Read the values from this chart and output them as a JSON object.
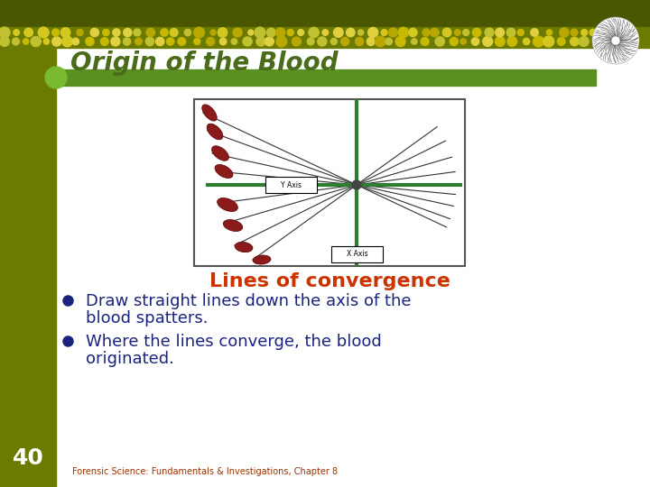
{
  "title": "Origin of the Blood",
  "title_color": "#4a6b1a",
  "title_fontsize": 20,
  "title_style": "italic",
  "background_color": "#ffffff",
  "convergence_title": "Lines of convergence",
  "convergence_color": "#cc3300",
  "convergence_fontsize": 16,
  "bullet1_line1": "Draw straight lines down the axis of the",
  "bullet1_line2": "blood spatters.",
  "bullet2_line1": "Where the lines converge, the blood",
  "bullet2_line2": "originated.",
  "bullet_fontsize": 13,
  "bullet_color": "#1a237e",
  "footer_text": "Forensic Science: Fundamentals & Investigations, Chapter 8",
  "footer_fontsize": 7,
  "footer_color": "#993300",
  "page_number": "40",
  "page_number_fontsize": 18,
  "blood_color": "#8b1a1a",
  "line_color": "#333333",
  "axis_color": "#2e7d32",
  "box_border": "#555555",
  "header_top_color": "#4a5700",
  "header_mid_color": "#6b7a00",
  "dot_colors": [
    "#d4c820",
    "#c8b800",
    "#b8a800",
    "#e0d040",
    "#c0c030"
  ],
  "left_bar_color": "#6b7a00",
  "green_bar_color": "#5a9020",
  "green_circle_color": "#7aba30",
  "yaxis_label": "Y Axis",
  "xaxis_label": "X Axis"
}
